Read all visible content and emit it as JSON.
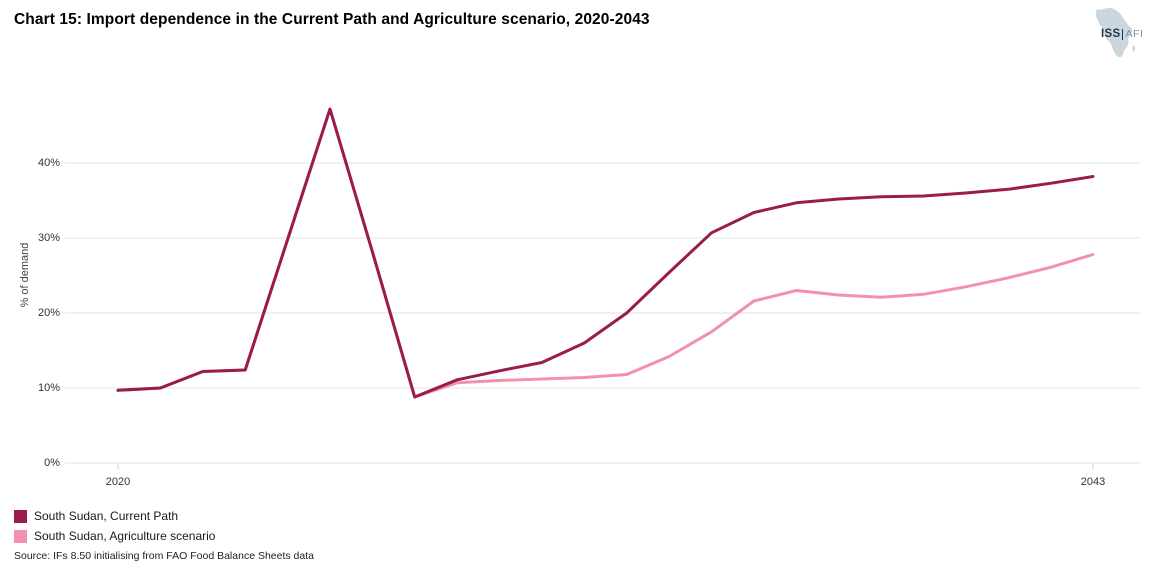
{
  "title": "Chart 15: Import dependence in the Current Path and Agriculture scenario, 2020-2043",
  "logo": {
    "iss": "ISS",
    "afi": "AFI",
    "map_icon": "africa-map-icon"
  },
  "source": "Source: IFs 8.50 initialising from FAO Food Balance Sheets data",
  "chart_data": {
    "type": "line",
    "title": "Chart 15: Import dependence in the Current Path and Agriculture scenario, 2020-2043",
    "xlabel": "",
    "ylabel": "% of demand",
    "x": [
      2020,
      2021,
      2022,
      2023,
      2024,
      2025,
      2026,
      2027,
      2028,
      2029,
      2030,
      2031,
      2032,
      2033,
      2034,
      2035,
      2036,
      2037,
      2038,
      2039,
      2040,
      2041,
      2042,
      2043
    ],
    "x_tick_labels": [
      "2020",
      "2043"
    ],
    "y_ticks": [
      0,
      10,
      20,
      30,
      40
    ],
    "y_tick_labels": [
      "0%",
      "10%",
      "20%",
      "30%",
      "40%"
    ],
    "ylim": [
      0,
      50
    ],
    "grid": "horizontal",
    "legend_position": "bottom-left",
    "series": [
      {
        "name": "South Sudan, Current Path",
        "color": "#9a1c4e",
        "values": [
          9.7,
          10.0,
          12.2,
          12.4,
          29.8,
          47.2,
          28.2,
          8.8,
          11.1,
          12.3,
          13.4,
          16.0,
          20.0,
          25.4,
          30.7,
          33.4,
          34.7,
          35.2,
          35.5,
          35.6,
          36.0,
          36.5,
          37.3,
          38.2
        ]
      },
      {
        "name": "South Sudan, Agriculture scenario",
        "color": "#f390ae",
        "values": [
          9.7,
          10.0,
          12.2,
          12.4,
          29.8,
          47.2,
          28.2,
          8.8,
          10.7,
          11.0,
          11.2,
          11.4,
          11.8,
          14.2,
          17.5,
          21.6,
          23.0,
          22.4,
          22.1,
          22.5,
          23.5,
          24.7,
          26.1,
          27.8
        ]
      }
    ]
  }
}
